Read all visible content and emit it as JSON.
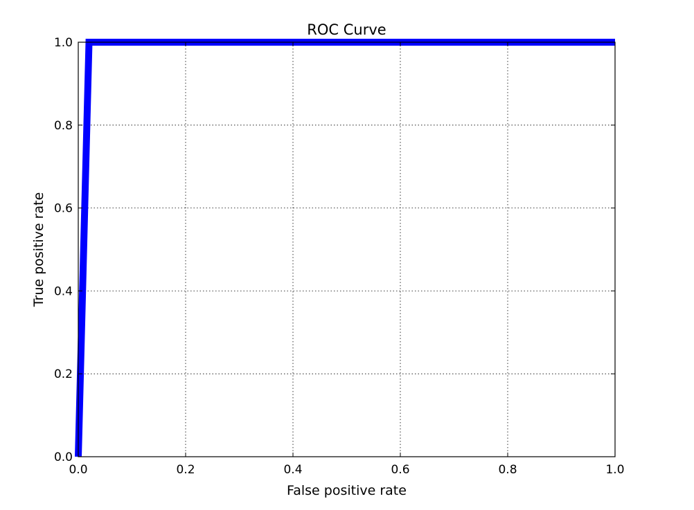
{
  "chart_data": {
    "type": "line",
    "title": "ROC Curve",
    "xlabel": "False positive rate",
    "ylabel": "True positive rate",
    "xlim": [
      0.0,
      1.0
    ],
    "ylim": [
      0.0,
      1.0
    ],
    "x_ticks": [
      "0.0",
      "0.2",
      "0.4",
      "0.6",
      "0.8",
      "1.0"
    ],
    "y_ticks": [
      "0.0",
      "0.2",
      "0.4",
      "0.6",
      "0.8",
      "1.0"
    ],
    "grid": true,
    "legend": "none",
    "line_color": "#0000ff",
    "series": [
      {
        "x": [
          0.0,
          0.0,
          0.02,
          0.02,
          1.0
        ],
        "y": [
          0.0,
          0.0,
          1.0,
          1.0,
          1.0
        ]
      }
    ]
  }
}
